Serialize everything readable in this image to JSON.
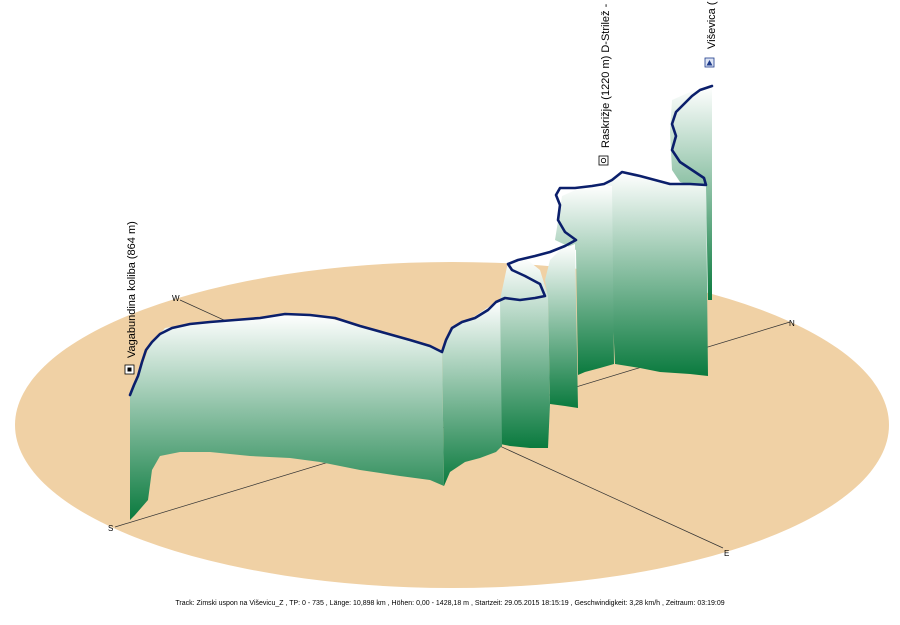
{
  "view": {
    "ground_color": "#f0d1a5",
    "wall_top_color": "#ffffff",
    "wall_bottom_color": "#0a7a3e",
    "track_color": "#0b1f6b",
    "axis_color": "#333333"
  },
  "compass": {
    "west": "W",
    "north": "N",
    "south": "S",
    "east": "E"
  },
  "waypoints": [
    {
      "label": "Vagabundina koliba (864 m)",
      "icon": "hut-icon"
    },
    {
      "label": "Raskrižje (1220 m) D-Strilež -",
      "icon": "crossroad-icon"
    },
    {
      "label": "Viševica (",
      "icon": "summit-icon"
    }
  ],
  "footer": {
    "text": "Track: Zimski uspon na Viševicu_Z  ,  TP: 0 - 735  ,  Länge: 10,898 km  ,  Höhen: 0,00 - 1428,18 m  ,  Startzeit: 29.05.2015 18:15:19  ,  Geschwindigkeit: 3,28 km/h  ,  Zeitraum: 03:19:09"
  }
}
